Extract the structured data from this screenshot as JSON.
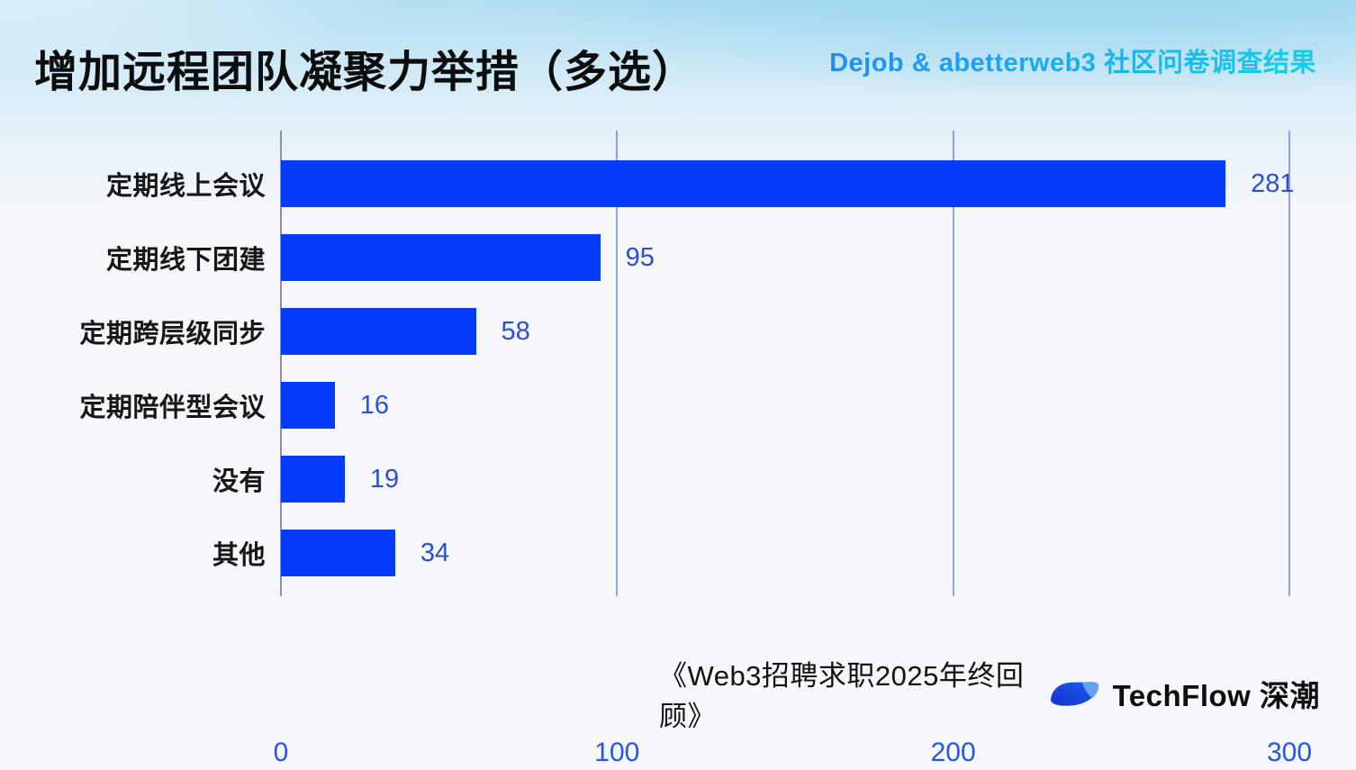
{
  "page": {
    "background_color": "#F5F7FB",
    "sky_band_color": "#A8DBF0"
  },
  "header": {
    "title": "增加远程团队凝聚力举措（多选）",
    "subtitle": "Dejob & abetterweb3 社区问卷调查结果",
    "subtitle_gradient": [
      "#1E8FF2",
      "#17CDE8"
    ]
  },
  "chart_data": {
    "type": "bar",
    "orientation": "horizontal",
    "title": "增加远程团队凝聚力举措（多选）",
    "categories": [
      "定期线上会议",
      "定期线下团建",
      "定期跨层级同步",
      "定期陪伴型会议",
      "没有",
      "其他"
    ],
    "values": [
      281,
      95,
      58,
      16,
      19,
      34
    ],
    "value_labels": [
      "281",
      "95",
      "58",
      "16",
      "19",
      "34"
    ],
    "xlim": [
      0,
      300
    ],
    "x_ticks": [
      0,
      100,
      200,
      300
    ],
    "grid": "vertical gridlines at ticks, no horizontal axis line",
    "legend": "none",
    "bar_color": "#053BFB",
    "value_label_color": "#2A4FD6",
    "tick_label_color": "#2856E2",
    "gridline_color": "#3E5EDE",
    "zero_axis_line_color": "#8E9096",
    "category_label_color": "#171717"
  },
  "footer": {
    "source": "《Web3招聘求职2025年终回顾》",
    "brand": "TechFlow 深潮",
    "logo": "techflow-leaf-logo",
    "logo_colors": {
      "body_start": "#1330CF",
      "body_end": "#1E5EF2",
      "corner": "#64A0F8"
    }
  }
}
